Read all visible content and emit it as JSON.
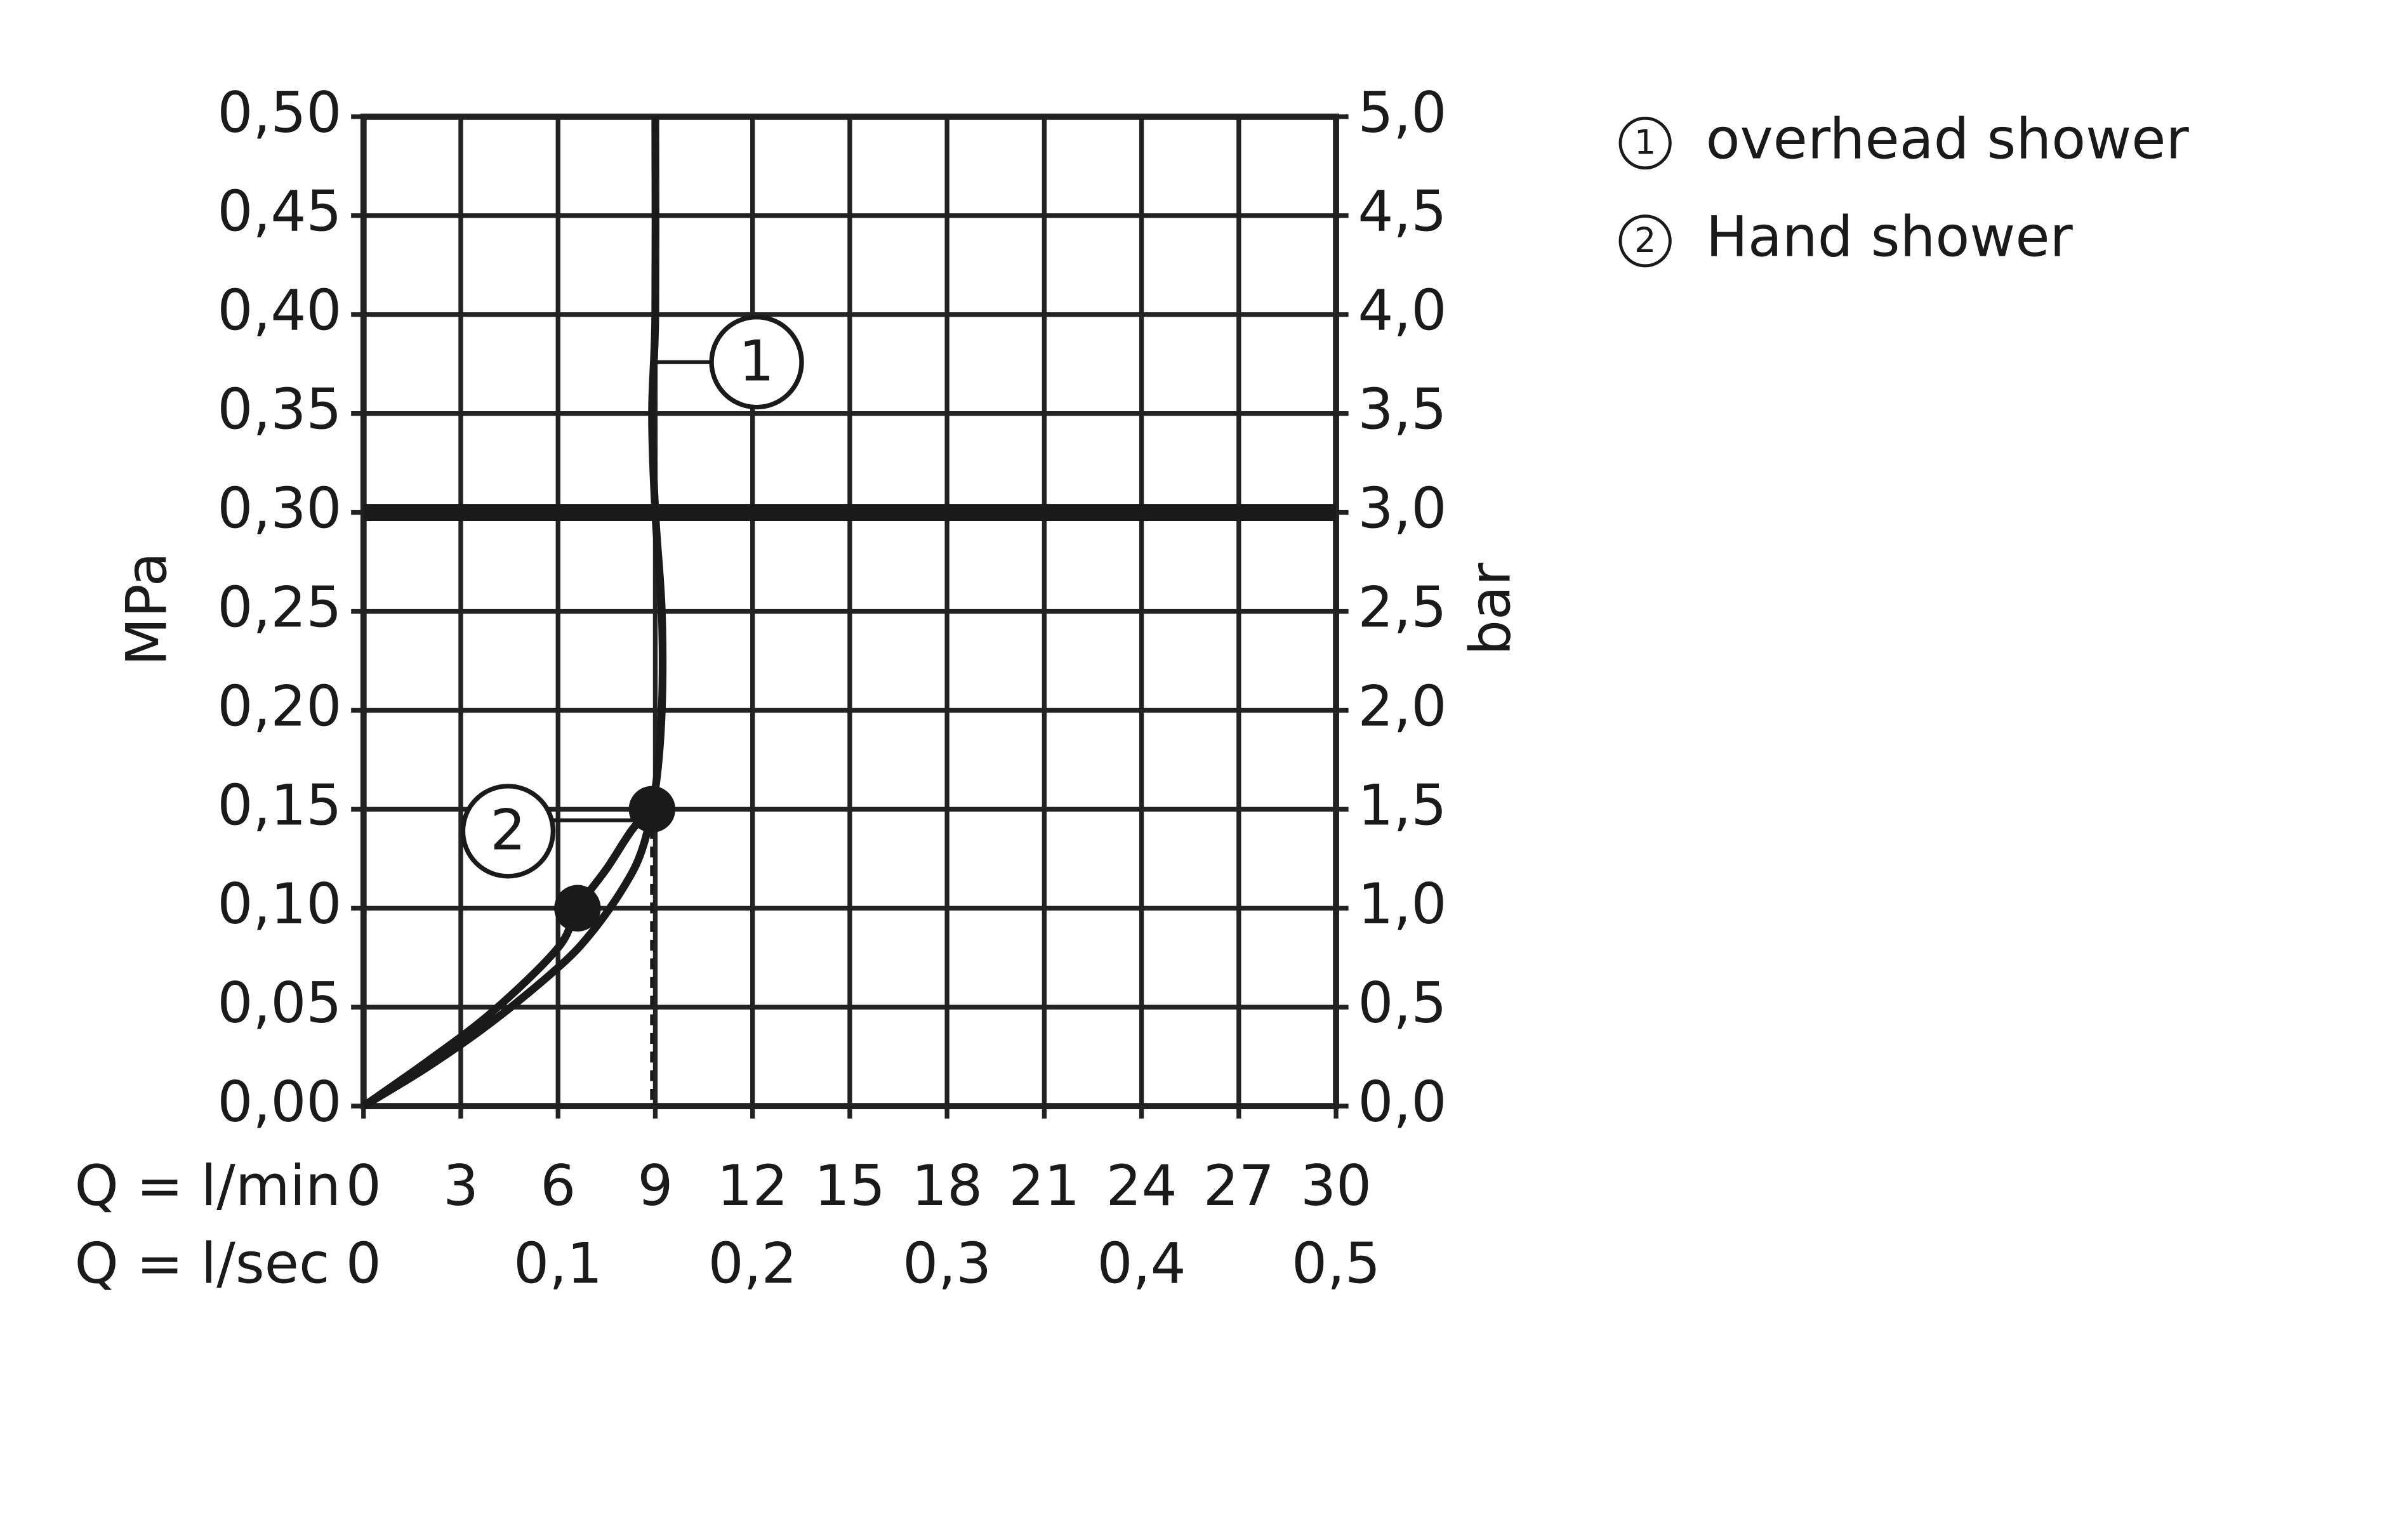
{
  "chart_data": {
    "type": "line",
    "x_label": "Q = l/min",
    "x2_label": "Q = l/sec",
    "y_label": "MPa",
    "y2_label": "bar",
    "xlim": [
      0,
      30
    ],
    "xticks": [
      0,
      3,
      6,
      9,
      12,
      15,
      18,
      21,
      24,
      27,
      30
    ],
    "x2lim": [
      0,
      0.5
    ],
    "x2ticks": [
      0,
      {
        "value": 0.1,
        "label": "0,1"
      },
      {
        "value": 0.2,
        "label": "0,2"
      },
      {
        "value": 0.3,
        "label": "0,3"
      },
      {
        "value": 0.4,
        "label": "0,4"
      },
      {
        "value": 0.5,
        "label": "0,5"
      }
    ],
    "ylim": [
      0,
      0.5
    ],
    "yticks": [
      {
        "value": 0,
        "label": "0,00"
      },
      {
        "value": 0.05,
        "label": "0,05"
      },
      {
        "value": 0.1,
        "label": "0,10"
      },
      {
        "value": 0.15,
        "label": "0,15"
      },
      {
        "value": 0.2,
        "label": "0,20"
      },
      {
        "value": 0.25,
        "label": "0,25"
      },
      {
        "value": 0.3,
        "label": "0,30"
      },
      {
        "value": 0.35,
        "label": "0,35"
      },
      {
        "value": 0.4,
        "label": "0,40"
      },
      {
        "value": 0.45,
        "label": "0,45"
      },
      {
        "value": 0.5,
        "label": "0,50"
      }
    ],
    "y2lim": [
      0,
      5
    ],
    "y2ticks": [
      {
        "value": 0,
        "label": "0,0"
      },
      {
        "value": 0.5,
        "label": "0,5"
      },
      {
        "value": 1,
        "label": "1,0"
      },
      {
        "value": 1.5,
        "label": "1,5"
      },
      {
        "value": 2,
        "label": "2,0"
      },
      {
        "value": 2.5,
        "label": "2,5"
      },
      {
        "value": 3,
        "label": "3,0"
      },
      {
        "value": 3.5,
        "label": "3,5"
      },
      {
        "value": 4,
        "label": "4,0"
      },
      {
        "value": 4.5,
        "label": "4,5"
      },
      {
        "value": 5,
        "label": "5,0"
      }
    ],
    "grid": true,
    "reference_lines": [
      {
        "axis": "y",
        "value": 0.3
      }
    ],
    "series": [
      {
        "name": "overhead shower",
        "label": "1",
        "color": "#1a1a1a",
        "x": [
          0,
          2,
          4,
          6,
          7,
          8,
          8.6,
          9.0,
          9.2,
          9.2,
          9.0,
          8.9,
          9.0,
          9.0
        ],
        "values": [
          0,
          0.02,
          0.043,
          0.07,
          0.087,
          0.11,
          0.13,
          0.16,
          0.2,
          0.25,
          0.3,
          0.35,
          0.4,
          0.5
        ]
      },
      {
        "name": "Hand shower",
        "label": "2",
        "color": "#1a1a1a",
        "x": [
          0,
          2,
          4,
          6,
          6.6,
          7.5,
          8.3,
          8.9
        ],
        "values": [
          0,
          0.023,
          0.048,
          0.08,
          0.1,
          0.12,
          0.14,
          0.15
        ]
      }
    ],
    "points": [
      {
        "x": 6.6,
        "y": 0.1
      },
      {
        "x": 8.9,
        "y": 0.15
      }
    ],
    "drop_lines": [
      {
        "x": 8.9,
        "y": 0.15
      }
    ],
    "legend": "top-right"
  }
}
